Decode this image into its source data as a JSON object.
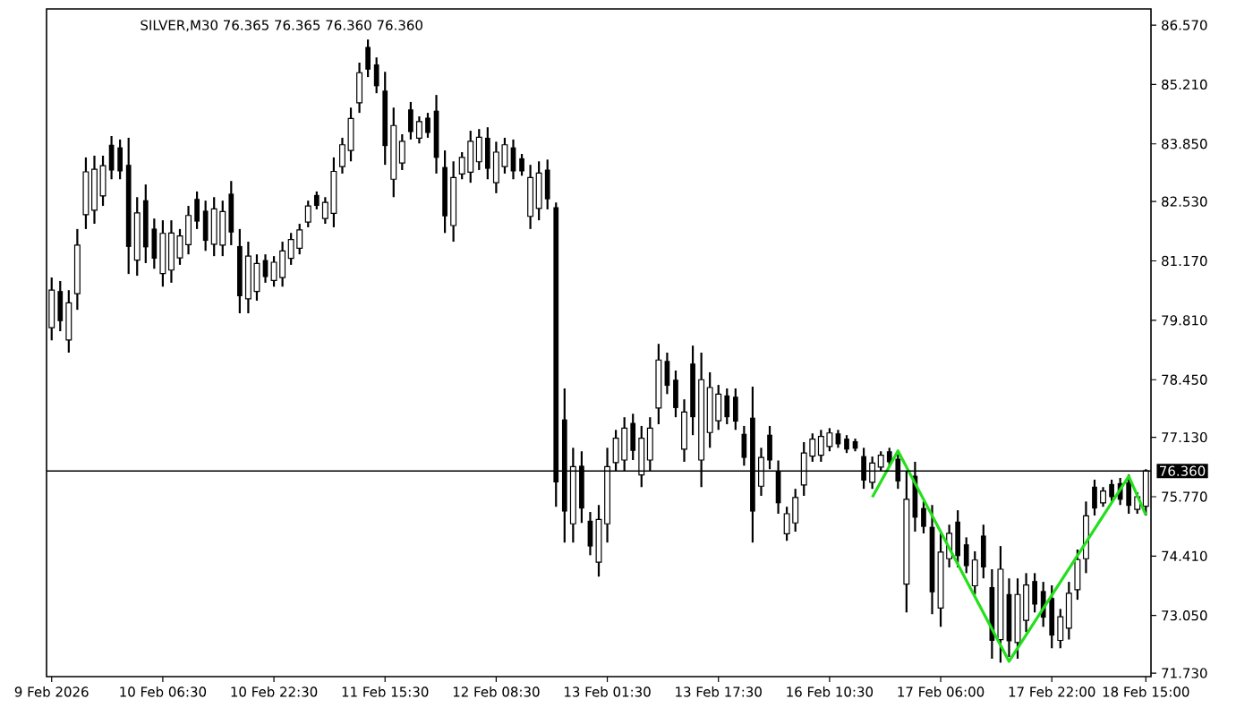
{
  "chart_data": {
    "type": "candlestick",
    "title": "SILVER,M30  76.365 76.365 76.360 76.360",
    "color": "#000000",
    "categories": [
      "9 Feb 2026",
      null,
      null,
      null,
      null,
      null,
      null,
      null,
      null,
      null,
      null,
      null,
      null,
      "10 Feb 06:30",
      null,
      null,
      null,
      null,
      null,
      null,
      null,
      null,
      null,
      null,
      null,
      null,
      "10 Feb 22:30",
      null,
      null,
      null,
      null,
      null,
      null,
      null,
      null,
      null,
      null,
      null,
      null,
      "11 Feb 15:30",
      null,
      null,
      null,
      null,
      null,
      null,
      null,
      null,
      null,
      null,
      null,
      null,
      "12 Feb 08:30",
      null,
      null,
      null,
      null,
      null,
      null,
      null,
      null,
      null,
      null,
      null,
      null,
      "13 Feb 01:30",
      null,
      null,
      null,
      null,
      null,
      null,
      null,
      null,
      null,
      null,
      null,
      null,
      "13 Feb 17:30",
      null,
      null,
      null,
      null,
      null,
      null,
      null,
      null,
      null,
      null,
      null,
      null,
      "16 Feb 10:30",
      null,
      null,
      null,
      null,
      null,
      null,
      null,
      null,
      null,
      null,
      null,
      null,
      "17 Feb 06:00",
      null,
      null,
      null,
      null,
      null,
      null,
      null,
      null,
      null,
      null,
      null,
      null,
      "17 Feb 22:00",
      null,
      null,
      null,
      null,
      null,
      null,
      null,
      null,
      null,
      null,
      "18 Feb 15:00"
    ],
    "ohlc": [
      [
        79.64,
        80.79,
        79.35,
        80.5
      ],
      [
        80.48,
        80.71,
        79.56,
        79.79
      ],
      [
        79.36,
        80.5,
        79.07,
        80.21
      ],
      [
        80.42,
        81.9,
        80.05,
        81.53
      ],
      [
        82.23,
        83.54,
        81.9,
        83.21
      ],
      [
        82.33,
        83.58,
        82.02,
        83.27
      ],
      [
        82.66,
        83.58,
        82.43,
        83.35
      ],
      [
        83.83,
        84.03,
        83.04,
        83.24
      ],
      [
        83.77,
        83.95,
        83.04,
        83.22
      ],
      [
        83.37,
        83.99,
        80.87,
        81.49
      ],
      [
        81.19,
        82.63,
        80.83,
        82.27
      ],
      [
        82.56,
        82.92,
        81.12,
        81.48
      ],
      [
        81.91,
        82.14,
        80.99,
        81.22
      ],
      [
        80.88,
        82.1,
        80.58,
        81.8
      ],
      [
        80.96,
        82.1,
        80.67,
        81.81
      ],
      [
        81.24,
        81.9,
        81.08,
        81.74
      ],
      [
        81.54,
        82.43,
        81.32,
        82.21
      ],
      [
        82.59,
        82.76,
        81.9,
        82.07
      ],
      [
        82.32,
        82.55,
        81.4,
        81.63
      ],
      [
        81.55,
        82.63,
        81.28,
        82.36
      ],
      [
        81.53,
        82.55,
        81.28,
        82.3
      ],
      [
        82.71,
        83.0,
        81.53,
        81.82
      ],
      [
        81.51,
        81.9,
        79.97,
        80.36
      ],
      [
        80.3,
        81.61,
        79.97,
        81.28
      ],
      [
        80.47,
        81.32,
        80.26,
        81.11
      ],
      [
        81.19,
        81.32,
        80.67,
        80.8
      ],
      [
        80.72,
        81.28,
        80.58,
        81.14
      ],
      [
        80.79,
        81.61,
        80.58,
        81.4
      ],
      [
        81.23,
        81.81,
        81.08,
        81.66
      ],
      [
        81.46,
        82.02,
        81.32,
        81.88
      ],
      [
        82.06,
        82.55,
        81.94,
        82.43
      ],
      [
        82.68,
        82.76,
        82.35,
        82.43
      ],
      [
        82.14,
        82.63,
        82.02,
        82.51
      ],
      [
        82.26,
        83.54,
        81.94,
        83.22
      ],
      [
        83.33,
        83.99,
        83.17,
        83.83
      ],
      [
        83.7,
        84.68,
        83.45,
        84.43
      ],
      [
        84.79,
        85.71,
        84.56,
        85.48
      ],
      [
        86.07,
        86.24,
        85.38,
        85.55
      ],
      [
        85.67,
        85.83,
        85.01,
        85.17
      ],
      [
        85.07,
        85.5,
        83.37,
        83.8
      ],
      [
        83.04,
        84.68,
        82.63,
        84.27
      ],
      [
        83.41,
        84.07,
        83.25,
        83.91
      ],
      [
        84.64,
        84.81,
        83.95,
        84.12
      ],
      [
        83.98,
        84.48,
        83.86,
        84.36
      ],
      [
        84.45,
        84.56,
        83.99,
        84.1
      ],
      [
        84.61,
        84.97,
        83.17,
        83.53
      ],
      [
        83.32,
        83.7,
        81.81,
        82.19
      ],
      [
        81.98,
        83.45,
        81.61,
        83.08
      ],
      [
        83.16,
        83.66,
        83.04,
        83.54
      ],
      [
        83.2,
        84.15,
        82.96,
        83.91
      ],
      [
        83.44,
        84.19,
        83.25,
        84.0
      ],
      [
        83.99,
        84.23,
        83.04,
        83.28
      ],
      [
        82.96,
        83.9,
        82.72,
        83.66
      ],
      [
        83.33,
        83.99,
        83.17,
        83.83
      ],
      [
        83.77,
        83.95,
        83.04,
        83.22
      ],
      [
        83.52,
        83.62,
        83.12,
        83.22
      ],
      [
        82.19,
        83.37,
        81.9,
        83.08
      ],
      [
        82.37,
        83.45,
        82.1,
        83.18
      ],
      [
        83.26,
        83.49,
        82.35,
        82.58
      ],
      [
        82.4,
        82.51,
        75.54,
        76.1
      ],
      [
        77.54,
        78.25,
        74.72,
        75.43
      ],
      [
        75.15,
        76.89,
        74.72,
        76.46
      ],
      [
        76.48,
        76.81,
        75.17,
        75.5
      ],
      [
        75.22,
        75.42,
        74.43,
        74.63
      ],
      [
        74.27,
        75.58,
        73.94,
        75.25
      ],
      [
        75.15,
        76.89,
        74.72,
        76.46
      ],
      [
        76.55,
        77.3,
        76.36,
        77.11
      ],
      [
        76.61,
        77.59,
        76.36,
        77.34
      ],
      [
        77.46,
        77.67,
        76.61,
        76.82
      ],
      [
        76.27,
        77.39,
        75.99,
        77.11
      ],
      [
        76.61,
        77.59,
        76.36,
        77.34
      ],
      [
        77.8,
        79.27,
        77.43,
        78.9
      ],
      [
        78.88,
        79.07,
        78.12,
        78.31
      ],
      [
        78.45,
        78.66,
        77.59,
        77.8
      ],
      [
        76.86,
        78.0,
        76.57,
        77.71
      ],
      [
        78.82,
        79.23,
        77.18,
        77.59
      ],
      [
        76.61,
        79.07,
        75.99,
        78.45
      ],
      [
        77.24,
        78.62,
        76.89,
        78.27
      ],
      [
        77.51,
        78.33,
        77.3,
        78.12
      ],
      [
        78.09,
        78.25,
        77.43,
        77.59
      ],
      [
        78.06,
        78.25,
        77.3,
        77.49
      ],
      [
        77.21,
        77.39,
        76.48,
        76.66
      ],
      [
        77.58,
        78.29,
        74.72,
        75.43
      ],
      [
        76.01,
        76.89,
        75.79,
        76.67
      ],
      [
        77.19,
        77.39,
        76.4,
        76.6
      ],
      [
        76.36,
        76.6,
        75.38,
        75.62
      ],
      [
        74.92,
        75.54,
        74.76,
        75.38
      ],
      [
        75.17,
        75.95,
        74.97,
        75.75
      ],
      [
        76.04,
        77.02,
        75.79,
        76.77
      ],
      [
        76.7,
        77.22,
        76.57,
        77.09
      ],
      [
        76.72,
        77.3,
        76.57,
        77.15
      ],
      [
        76.92,
        77.34,
        76.81,
        77.23
      ],
      [
        77.22,
        77.3,
        76.89,
        76.97
      ],
      [
        77.1,
        77.18,
        76.77,
        76.85
      ],
      [
        77.04,
        77.1,
        76.81,
        76.87
      ],
      [
        76.7,
        76.89,
        75.95,
        76.14
      ],
      [
        76.1,
        76.69,
        75.95,
        76.54
      ],
      [
        76.45,
        76.81,
        76.36,
        76.72
      ],
      [
        76.81,
        76.89,
        76.48,
        76.56
      ],
      [
        76.64,
        76.81,
        75.95,
        76.12
      ],
      [
        73.77,
        76.36,
        73.12,
        75.71
      ],
      [
        76.25,
        76.57,
        74.97,
        75.29
      ],
      [
        75.51,
        75.66,
        74.93,
        75.08
      ],
      [
        75.08,
        75.58,
        73.08,
        73.58
      ],
      [
        73.22,
        74.93,
        72.79,
        74.5
      ],
      [
        74.35,
        75.13,
        74.15,
        74.93
      ],
      [
        75.2,
        75.46,
        74.15,
        74.41
      ],
      [
        74.68,
        74.84,
        74.02,
        74.18
      ],
      [
        73.73,
        74.52,
        73.53,
        74.32
      ],
      [
        74.88,
        75.13,
        73.9,
        74.15
      ],
      [
        73.7,
        74.11,
        72.06,
        72.47
      ],
      [
        72.5,
        74.64,
        71.97,
        74.11
      ],
      [
        73.54,
        73.9,
        72.1,
        72.46
      ],
      [
        72.43,
        73.9,
        72.06,
        73.53
      ],
      [
        72.94,
        74.02,
        72.67,
        73.75
      ],
      [
        73.84,
        74.02,
        73.12,
        73.3
      ],
      [
        73.61,
        73.82,
        72.79,
        73.0
      ],
      [
        73.45,
        73.74,
        72.3,
        72.59
      ],
      [
        72.48,
        73.2,
        72.3,
        73.02
      ],
      [
        72.76,
        73.82,
        72.5,
        73.56
      ],
      [
        73.64,
        74.56,
        73.41,
        74.33
      ],
      [
        74.35,
        75.66,
        74.02,
        75.33
      ],
      [
        76.0,
        76.16,
        75.34,
        75.5
      ],
      [
        75.63,
        75.99,
        75.54,
        75.9
      ],
      [
        76.06,
        76.16,
        75.66,
        75.76
      ],
      [
        76.08,
        76.2,
        75.58,
        75.7
      ],
      [
        76.1,
        76.28,
        75.38,
        75.56
      ],
      [
        75.48,
        75.87,
        75.38,
        75.77
      ],
      [
        75.55,
        76.4,
        75.34,
        76.36
      ]
    ],
    "series": [
      {
        "type": "line",
        "color": "#22e01a",
        "values": [
          null,
          null,
          null,
          null,
          null,
          null,
          null,
          null,
          null,
          null,
          null,
          null,
          null,
          null,
          null,
          null,
          null,
          null,
          null,
          null,
          null,
          null,
          null,
          null,
          null,
          null,
          null,
          null,
          null,
          null,
          null,
          null,
          null,
          null,
          null,
          null,
          null,
          null,
          null,
          null,
          null,
          null,
          null,
          null,
          null,
          null,
          null,
          null,
          null,
          null,
          null,
          null,
          null,
          null,
          null,
          null,
          null,
          null,
          null,
          null,
          null,
          null,
          null,
          null,
          null,
          null,
          null,
          null,
          null,
          null,
          null,
          null,
          null,
          null,
          null,
          null,
          null,
          null,
          null,
          null,
          null,
          null,
          null,
          null,
          null,
          null,
          null,
          null,
          null,
          null,
          null,
          null,
          null,
          null,
          null,
          null,
          75.76,
          null,
          null,
          76.82,
          null,
          null,
          null,
          null,
          null,
          null,
          null,
          null,
          null,
          null,
          null,
          null,
          72.0,
          null,
          null,
          null,
          null,
          null,
          null,
          null,
          null,
          null,
          null,
          null,
          null,
          null,
          76.24,
          null,
          75.35
        ]
      }
    ],
    "ylim": [
      71.65,
      86.94
    ],
    "yticks": [
      {
        "value": 71.73,
        "label": "71.730"
      },
      {
        "value": 73.05,
        "label": "73.050"
      },
      {
        "value": 74.41,
        "label": "74.410"
      },
      {
        "value": 75.77,
        "label": "75.770"
      },
      {
        "value": 77.13,
        "label": "77.130"
      },
      {
        "value": 78.45,
        "label": "78.450"
      },
      {
        "value": 79.81,
        "label": "79.810"
      },
      {
        "value": 81.17,
        "label": "81.170"
      },
      {
        "value": 82.53,
        "label": "82.530"
      },
      {
        "value": 83.85,
        "label": "83.850"
      },
      {
        "value": 85.21,
        "label": "85.210"
      },
      {
        "value": 86.57,
        "label": "86.570"
      }
    ],
    "ref_lines": [
      {
        "axis": "y",
        "value": 76.36,
        "label": "76.360",
        "color": "#000000"
      }
    ]
  }
}
